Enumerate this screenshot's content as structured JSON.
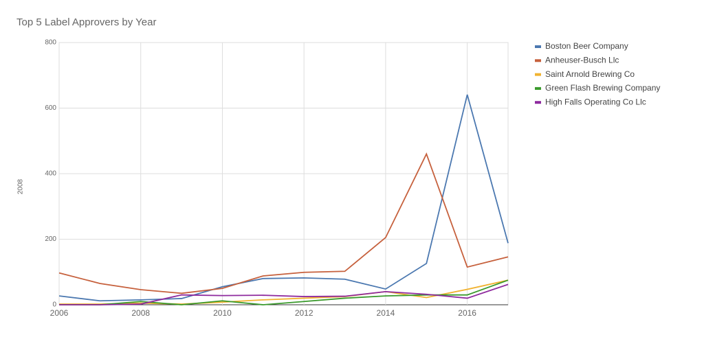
{
  "chart_data": {
    "type": "line",
    "title": "Top 5 Label Approvers by Year",
    "y_label": "2008",
    "x": [
      2006,
      2007,
      2008,
      2009,
      2010,
      2011,
      2012,
      2013,
      2014,
      2015,
      2016,
      2017
    ],
    "xlim": [
      2006,
      2017
    ],
    "xticks": [
      2006,
      2008,
      2010,
      2012,
      2014,
      2016
    ],
    "ylim": [
      0,
      800
    ],
    "yticks": [
      0,
      200,
      400,
      600,
      800
    ],
    "grid": true,
    "legend": "right",
    "series": [
      {
        "name": "Boston Beer Company",
        "color": "#4b78b0",
        "values": [
          27,
          12,
          15,
          19,
          55,
          80,
          82,
          78,
          48,
          126,
          641,
          188
        ]
      },
      {
        "name": "Anheuser-Busch Llc",
        "color": "#c6603c",
        "values": [
          97,
          65,
          46,
          35,
          50,
          88,
          99,
          102,
          205,
          460,
          115,
          146
        ]
      },
      {
        "name": "Saint Arnold Brewing Co",
        "color": "#f1b331",
        "values": [
          2,
          2,
          5,
          2,
          8,
          15,
          20,
          25,
          40,
          22,
          47,
          75
        ]
      },
      {
        "name": "Green Flash Brewing Company",
        "color": "#3a9a2c",
        "values": [
          0,
          0,
          10,
          0,
          12,
          0,
          10,
          20,
          27,
          30,
          30,
          75
        ]
      },
      {
        "name": "High Falls Operating Co Llc",
        "color": "#8e2a9e",
        "values": [
          0,
          0,
          2,
          30,
          28,
          29,
          25,
          26,
          40,
          32,
          20,
          62
        ]
      }
    ]
  }
}
